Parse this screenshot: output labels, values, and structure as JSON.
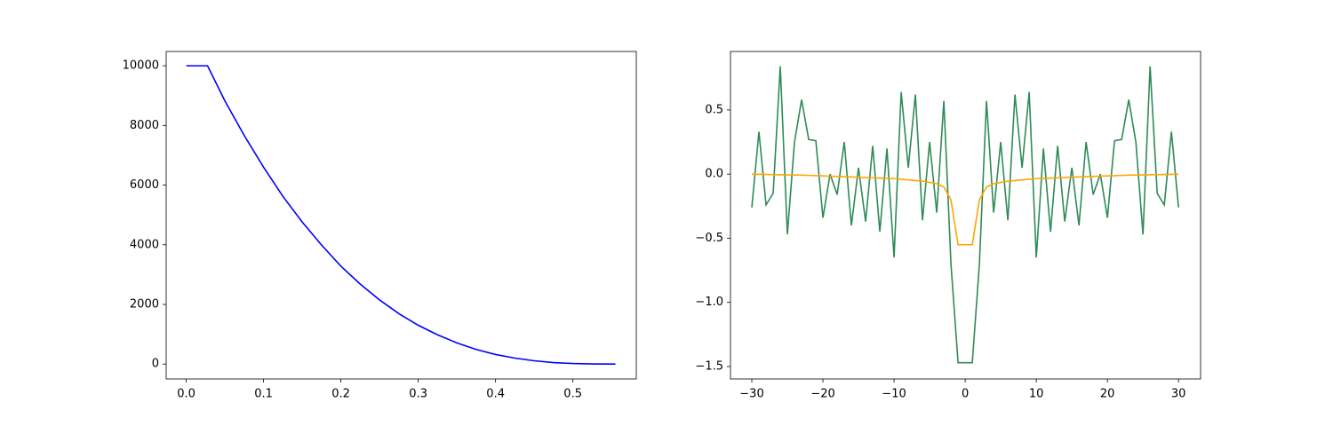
{
  "chart_data": [
    {
      "type": "line",
      "x": [
        0,
        0.025,
        0.0275,
        0.05,
        0.075,
        0.1,
        0.125,
        0.15,
        0.175,
        0.2,
        0.225,
        0.25,
        0.275,
        0.3,
        0.325,
        0.35,
        0.375,
        0.4,
        0.425,
        0.45,
        0.475,
        0.5,
        0.525,
        0.555
      ],
      "series": [
        {
          "name": null,
          "color": "#0000ff",
          "values": [
            10000,
            10000,
            10000,
            8820,
            7660,
            6600,
            5620,
            4760,
            3990,
            3280,
            2680,
            2150,
            1690,
            1300,
            980,
            710,
            490,
            320,
            200,
            110,
            50,
            18,
            3,
            0
          ]
        }
      ],
      "xlim": [
        -0.026,
        0.582
      ],
      "ylim": [
        -500,
        10480
      ],
      "xticks": [
        {
          "value": 0,
          "label": "0.0"
        },
        0.1,
        0.2,
        0.3,
        0.4,
        0.5
      ],
      "yticks": [
        0,
        2000,
        4000,
        6000,
        8000,
        10000
      ]
    },
    {
      "type": "line",
      "x": [
        -30,
        -29,
        -28,
        -27,
        -26,
        -25,
        -24,
        -23,
        -22,
        -21,
        -20,
        -19,
        -18,
        -17,
        -16,
        -15,
        -14,
        -13,
        -12,
        -11,
        -10,
        -9,
        -8,
        -7,
        -6,
        -5,
        -4,
        -3,
        -2,
        -1,
        0,
        1,
        2,
        3,
        4,
        5,
        6,
        7,
        8,
        9,
        10,
        11,
        12,
        13,
        14,
        15,
        16,
        17,
        18,
        19,
        20,
        21,
        22,
        23,
        24,
        25,
        26,
        27,
        28,
        29,
        30
      ],
      "series": [
        {
          "name": null,
          "color": "#2e8b57",
          "values": [
            -0.26,
            0.33,
            -0.24,
            -0.15,
            0.84,
            -0.47,
            0.25,
            0.58,
            0.27,
            0.26,
            -0.34,
            0,
            -0.16,
            0.25,
            -0.4,
            0.05,
            -0.37,
            0.22,
            -0.45,
            0.2,
            -0.65,
            0.64,
            0.05,
            0.62,
            -0.36,
            0.25,
            -0.3,
            0.57,
            -0.7,
            -1.47,
            -1.47,
            -1.47,
            -0.7,
            0.57,
            -0.3,
            0.25,
            -0.36,
            0.62,
            0.05,
            0.64,
            -0.65,
            0.2,
            -0.45,
            0.22,
            -0.37,
            0.05,
            -0.4,
            0.25,
            -0.16,
            0,
            -0.34,
            0.26,
            0.27,
            0.58,
            0.25,
            -0.47,
            0.84,
            -0.15,
            -0.24,
            0.33,
            -0.26
          ]
        },
        {
          "name": null,
          "color": "#ffa500",
          "values": [
            -0.001,
            -0.002,
            -0.003,
            -0.004,
            -0.005,
            -0.006,
            -0.007,
            -0.008,
            -0.01,
            -0.012,
            -0.014,
            -0.016,
            -0.018,
            -0.02,
            -0.022,
            -0.025,
            -0.027,
            -0.029,
            -0.031,
            -0.033,
            -0.035,
            -0.04,
            -0.045,
            -0.05,
            -0.055,
            -0.065,
            -0.075,
            -0.1,
            -0.2,
            -0.55,
            -0.55,
            -0.55,
            -0.2,
            -0.1,
            -0.075,
            -0.065,
            -0.055,
            -0.05,
            -0.045,
            -0.04,
            -0.035,
            -0.033,
            -0.031,
            -0.029,
            -0.027,
            -0.025,
            -0.022,
            -0.02,
            -0.018,
            -0.016,
            -0.014,
            -0.012,
            -0.01,
            -0.008,
            -0.007,
            -0.006,
            -0.005,
            -0.004,
            -0.003,
            -0.002,
            -0.001
          ]
        }
      ],
      "xlim": [
        -33,
        33.1
      ],
      "ylim": [
        -1.597,
        0.956
      ],
      "xticks": [
        {
          "value": -30,
          "label": "−30"
        },
        {
          "value": -20,
          "label": "−20"
        },
        {
          "value": -10,
          "label": "−10"
        },
        0,
        10,
        20,
        30
      ],
      "yticks": [
        {
          "value": -1.5,
          "label": "−1.5"
        },
        {
          "value": -1,
          "label": "−1.0"
        },
        {
          "value": -0.5,
          "label": "−0.5"
        },
        {
          "value": 0,
          "label": "0.0"
        },
        0.5
      ]
    }
  ]
}
